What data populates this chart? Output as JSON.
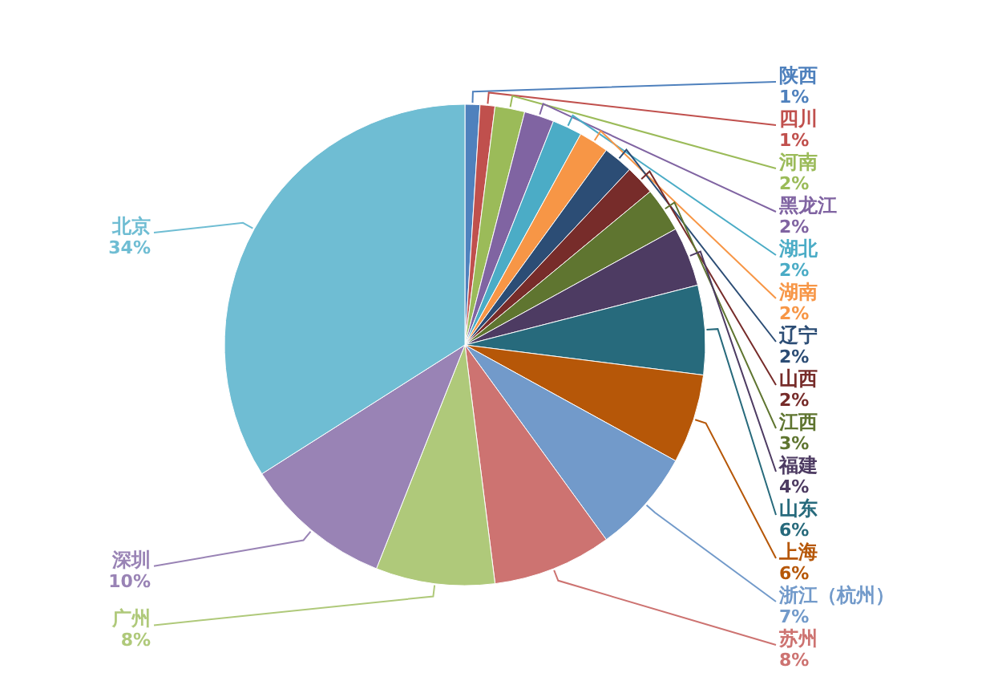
{
  "chart_data": {
    "type": "pie",
    "categories": [
      "陕西",
      "四川",
      "河南",
      "黑龙江",
      "湖北",
      "湖南",
      "辽宁",
      "山西",
      "江西",
      "福建",
      "山东",
      "上海",
      "浙江（杭州）",
      "苏州",
      "广州",
      "深圳",
      "北京"
    ],
    "values": [
      1,
      1,
      2,
      2,
      2,
      2,
      2,
      2,
      3,
      4,
      6,
      6,
      7,
      8,
      8,
      10,
      34
    ],
    "value_labels": [
      "1%",
      "1%",
      "2%",
      "2%",
      "2%",
      "2%",
      "2%",
      "2%",
      "3%",
      "4%",
      "6%",
      "6%",
      "7%",
      "8%",
      "8%",
      "10%",
      "34%"
    ],
    "colors": [
      "#4f81bd",
      "#c0504d",
      "#9bbb59",
      "#8064a2",
      "#4bacc6",
      "#f79646",
      "#2c4d75",
      "#772c2a",
      "#5f7530",
      "#4d3b62",
      "#276a7c",
      "#b65708",
      "#729aca",
      "#cd7371",
      "#afc97a",
      "#9983b5",
      "#6fbdd3"
    ]
  }
}
